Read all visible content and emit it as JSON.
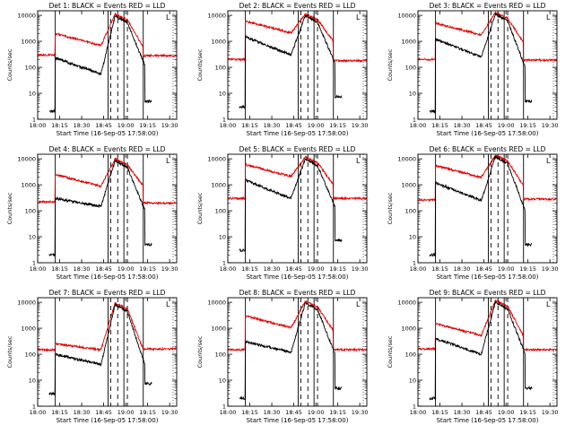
{
  "chart_data": {
    "type": "line",
    "grid": false,
    "series_names": [
      "BLACK = Events",
      "RED = LLD"
    ],
    "colors": {
      "events": "#000000",
      "lld": "#e00000",
      "axes": "#000000",
      "background": "#ffffff"
    },
    "ylabel": "Counts/sec",
    "xlabel": "Start Time (16-Sep-05 17:58:00)",
    "xlim": [
      18.0,
      19.58
    ],
    "ylim": [
      1,
      15000
    ],
    "y_scale": "log",
    "xtick_values": [
      18.0,
      18.25,
      18.5,
      18.75,
      19.0,
      19.25,
      19.5
    ],
    "xtick_labels": [
      "18:00",
      "18:15",
      "18:30",
      "18:45",
      "19:00",
      "19:15",
      "19:30"
    ],
    "ytick_values": [
      1,
      10,
      100,
      1000,
      10000
    ],
    "ytick_labels": [
      "1",
      "10",
      "100",
      "1000",
      "10000"
    ],
    "markers": {
      "solid": [
        18.2,
        18.8,
        18.98,
        19.2
      ],
      "dashed": [
        18.83,
        18.91,
        19.02
      ]
    },
    "panels": [
      {
        "det": 1,
        "title": "Det  1:  BLACK = Events   RED = LLD",
        "legend_text": "L",
        "peak": 9500,
        "pre_events": 2,
        "events_start": 230,
        "events_end": 170,
        "dip": 55,
        "lld_base": 300,
        "lld_start": 2000,
        "lld_end": 600,
        "lld_post": 280
      },
      {
        "det": 2,
        "title": "Det  2:  BLACK = Events   RED = LLD",
        "legend_text": "L",
        "peak": 9800,
        "pre_events": 3,
        "events_start": 1500,
        "events_end": 200,
        "dip": 300,
        "lld_base": 200,
        "lld_start": 6000,
        "lld_end": 1000,
        "lld_post": 180
      },
      {
        "det": 3,
        "title": "Det  3:  BLACK = Events   RED = LLD",
        "legend_text": "L",
        "peak": 11000,
        "pre_events": 2,
        "events_start": 1200,
        "events_end": 150,
        "dip": 250,
        "lld_base": 200,
        "lld_start": 5000,
        "lld_end": 900,
        "lld_post": 190
      },
      {
        "det": 4,
        "title": "Det  4:  BLACK = Events   RED = LLD",
        "legend_text": "L",
        "peak": 8500,
        "pre_events": 2,
        "events_start": 300,
        "events_end": 150,
        "dip": 150,
        "lld_base": 220,
        "lld_start": 2500,
        "lld_end": 900,
        "lld_post": 200
      },
      {
        "det": 5,
        "title": "Det  5:  BLACK = Events   RED = LLD",
        "legend_text": "L",
        "peak": 10000,
        "pre_events": 3,
        "events_start": 1500,
        "events_end": 200,
        "dip": 300,
        "lld_base": 300,
        "lld_start": 6000,
        "lld_end": 1000,
        "lld_post": 300
      },
      {
        "det": 6,
        "title": "Det  6:  BLACK = Events   RED = LLD",
        "legend_text": "L",
        "peak": 12000,
        "pre_events": 2,
        "events_start": 1200,
        "events_end": 150,
        "dip": 250,
        "lld_base": 260,
        "lld_start": 5500,
        "lld_end": 900,
        "lld_post": 280
      },
      {
        "det": 7,
        "title": "Det  7:  BLACK = Events   RED = LLD",
        "legend_text": "L",
        "peak": 8000,
        "pre_events": 3,
        "events_start": 100,
        "events_end": 60,
        "dip": 40,
        "lld_base": 150,
        "lld_start": 250,
        "lld_end": 150,
        "lld_post": 160
      },
      {
        "det": 8,
        "title": "Det  8:  BLACK = Events   RED = LLD",
        "legend_text": "L",
        "peak": 9500,
        "pre_events": 2,
        "events_start": 300,
        "events_end": 150,
        "dip": 120,
        "lld_base": 150,
        "lld_start": 3000,
        "lld_end": 800,
        "lld_post": 150
      },
      {
        "det": 9,
        "title": "Det  9:  BLACK = Events   RED = LLD",
        "legend_text": "L",
        "peak": 10000,
        "pre_events": 2,
        "events_start": 400,
        "events_end": 150,
        "dip": 100,
        "lld_base": 160,
        "lld_start": 1500,
        "lld_end": 500,
        "lld_post": 150
      }
    ]
  }
}
